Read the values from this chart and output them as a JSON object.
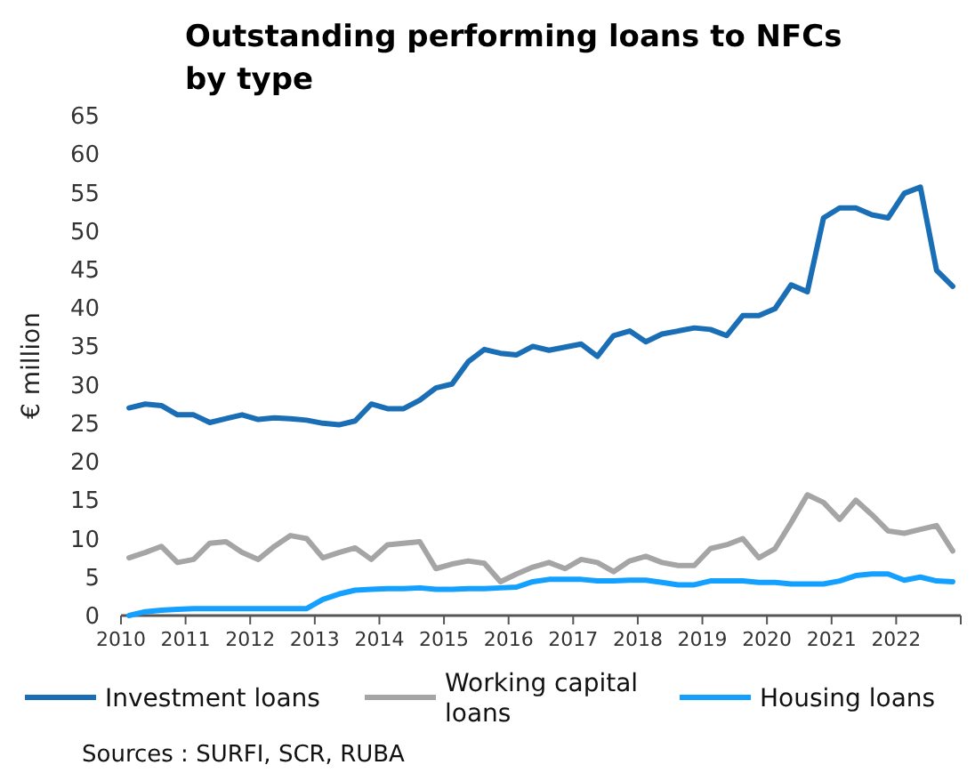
{
  "chart_data": {
    "type": "line",
    "title": "Outstanding performing loans to NFCs by type",
    "ylabel": "€ million",
    "x": [
      2010.125,
      2010.375,
      2010.625,
      2010.875,
      2011.125,
      2011.375,
      2011.625,
      2011.875,
      2012.125,
      2012.375,
      2012.625,
      2012.875,
      2013.125,
      2013.375,
      2013.625,
      2013.875,
      2014.125,
      2014.375,
      2014.625,
      2014.875,
      2015.125,
      2015.375,
      2015.625,
      2015.875,
      2016.125,
      2016.375,
      2016.625,
      2016.875,
      2017.125,
      2017.375,
      2017.625,
      2017.875,
      2018.125,
      2018.375,
      2018.625,
      2018.875,
      2019.125,
      2019.375,
      2019.625,
      2019.875,
      2020.125,
      2020.375,
      2020.625,
      2020.875,
      2021.125,
      2021.375,
      2021.625,
      2021.875,
      2022.125,
      2022.375,
      2022.625,
      2022.875
    ],
    "xlim": [
      2010,
      2023
    ],
    "xticks": [
      2010,
      2011,
      2012,
      2013,
      2014,
      2015,
      2016,
      2017,
      2018,
      2019,
      2020,
      2021,
      2022
    ],
    "ylim": [
      0,
      65
    ],
    "yticks": [
      0,
      5,
      10,
      15,
      20,
      25,
      30,
      35,
      40,
      45,
      50,
      55,
      60,
      65
    ],
    "series": [
      {
        "name": "Investment loans",
        "color": "#1a6eb5",
        "values": [
          27,
          27.5,
          27.3,
          26.1,
          26.1,
          25.1,
          25.6,
          26.1,
          25.5,
          25.7,
          25.6,
          25.4,
          25,
          24.8,
          25.3,
          27.5,
          26.9,
          26.9,
          28,
          29.6,
          30.1,
          33,
          34.6,
          34.1,
          33.9,
          35,
          34.5,
          34.9,
          35.3,
          33.7,
          36.4,
          37,
          35.6,
          36.6,
          37,
          37.4,
          37.2,
          36.4,
          39,
          39,
          39.9,
          43,
          42.1,
          51.7,
          53,
          53,
          52.1,
          51.7,
          54.9,
          55.7,
          44.9,
          42.8
        ]
      },
      {
        "name": "Working capital loans",
        "color": "#a5a5a5",
        "values": [
          7.5,
          8.2,
          9,
          6.9,
          7.3,
          9.4,
          9.6,
          8.2,
          7.3,
          9,
          10.4,
          10,
          7.5,
          8.2,
          8.8,
          7.3,
          9.2,
          9.4,
          9.6,
          6.1,
          6.7,
          7.1,
          6.8,
          4.4,
          5.4,
          6.3,
          6.9,
          6.1,
          7.3,
          6.9,
          5.7,
          7.1,
          7.7,
          6.9,
          6.5,
          6.5,
          8.7,
          9.2,
          10,
          7.5,
          8.7,
          12.1,
          15.7,
          14.7,
          12.5,
          15,
          13.1,
          11,
          10.7,
          11.2,
          11.7,
          8.4
        ]
      },
      {
        "name": "Housing loans",
        "color": "#14a0ff",
        "values": [
          0,
          0.5,
          0.7,
          0.8,
          0.9,
          0.9,
          0.9,
          0.9,
          0.9,
          0.9,
          0.9,
          0.9,
          2.1,
          2.8,
          3.3,
          3.4,
          3.5,
          3.5,
          3.6,
          3.4,
          3.4,
          3.5,
          3.5,
          3.6,
          3.7,
          4.4,
          4.7,
          4.7,
          4.7,
          4.5,
          4.5,
          4.6,
          4.6,
          4.3,
          4,
          4,
          4.5,
          4.5,
          4.5,
          4.3,
          4.3,
          4.1,
          4.1,
          4.1,
          4.5,
          5.2,
          5.4,
          5.4,
          4.6,
          5,
          4.5,
          4.4
        ]
      }
    ],
    "grid": false,
    "legend": "bottom",
    "marker": "none",
    "line_style": "solid",
    "annotations": [
      "Sources : SURFI, SCR, RUBA"
    ]
  }
}
